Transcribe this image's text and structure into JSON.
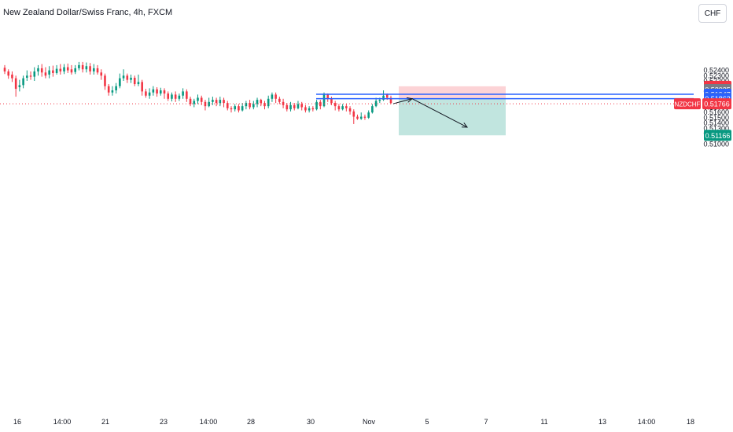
{
  "header": {
    "title": "New Zealand Dollar/Swiss Franc, 4h, FXCM",
    "currency_button": "CHF"
  },
  "chart_data": {
    "type": "candlestick",
    "symbol": "NZDCHF",
    "interval": "4h",
    "source": "FXCM",
    "y_ticks": [
      "0.52400",
      "0.52300",
      "0.52200",
      "0.52000",
      "0.51800",
      "0.51700",
      "0.51600",
      "0.51500",
      "0.51400",
      "0.51300",
      "0.51200",
      "0.51100",
      "0.51000"
    ],
    "x_ticks": [
      "16",
      "14:00",
      "21",
      "23",
      "14:00",
      "28",
      "30",
      "Nov",
      "5",
      "7",
      "11",
      "13",
      "14:00",
      "18"
    ],
    "price_labels": [
      {
        "text": "0.52098",
        "role": "stop-loss",
        "color": "#f23645"
      },
      {
        "text": "0.52035",
        "role": "level",
        "color": "#787b86"
      },
      {
        "text": "0.51947",
        "role": "resistance-line",
        "color": "#2962ff"
      },
      {
        "text": "0.51868",
        "role": "level",
        "color": "#787b86"
      },
      {
        "text": "0.51862",
        "role": "entry-line",
        "color": "#2962ff"
      },
      {
        "text": "0.51166",
        "role": "take-profit",
        "color": "#089981"
      }
    ],
    "last_price": {
      "symbol": "NZDCHF",
      "value": "0.51766",
      "color": "#f23645"
    },
    "horizontal_lines": [
      0.51947,
      0.51862
    ],
    "position": {
      "side": "short",
      "entry": 0.51862,
      "stop": 0.52098,
      "target": 0.51166
    },
    "candles": [
      [
        0.5245,
        0.5238,
        0.525,
        0.5233
      ],
      [
        0.5238,
        0.523,
        0.5242,
        0.5224
      ],
      [
        0.5232,
        0.5225,
        0.5238,
        0.5218
      ],
      [
        0.5225,
        0.5205,
        0.523,
        0.519
      ],
      [
        0.5208,
        0.5212,
        0.5222,
        0.52
      ],
      [
        0.5212,
        0.5225,
        0.523,
        0.5206
      ],
      [
        0.5226,
        0.523,
        0.524,
        0.522
      ],
      [
        0.523,
        0.5228,
        0.5238,
        0.5222
      ],
      [
        0.5228,
        0.5238,
        0.5246,
        0.522
      ],
      [
        0.5238,
        0.5244,
        0.525,
        0.523
      ],
      [
        0.5244,
        0.5236,
        0.5252,
        0.5228
      ],
      [
        0.5236,
        0.523,
        0.5246,
        0.5225
      ],
      [
        0.5232,
        0.524,
        0.5248,
        0.5225
      ],
      [
        0.524,
        0.5235,
        0.5249,
        0.5228
      ],
      [
        0.5235,
        0.5243,
        0.525,
        0.5232
      ],
      [
        0.5243,
        0.5238,
        0.5252,
        0.5232
      ],
      [
        0.5238,
        0.5246,
        0.5252,
        0.5233
      ],
      [
        0.5246,
        0.524,
        0.5253,
        0.5235
      ],
      [
        0.5242,
        0.5236,
        0.525,
        0.5232
      ],
      [
        0.5237,
        0.5244,
        0.525,
        0.5233
      ],
      [
        0.5244,
        0.525,
        0.5256,
        0.524
      ],
      [
        0.525,
        0.5242,
        0.5256,
        0.5236
      ],
      [
        0.5242,
        0.5248,
        0.5255,
        0.5236
      ],
      [
        0.5248,
        0.5238,
        0.5254,
        0.5232
      ],
      [
        0.5238,
        0.5244,
        0.5252,
        0.5232
      ],
      [
        0.5244,
        0.5236,
        0.525,
        0.5232
      ],
      [
        0.5236,
        0.523,
        0.5242,
        0.5222
      ],
      [
        0.523,
        0.521,
        0.5234,
        0.5203
      ],
      [
        0.521,
        0.5198,
        0.5214,
        0.5192
      ],
      [
        0.5198,
        0.5202,
        0.521,
        0.5192
      ],
      [
        0.5202,
        0.521,
        0.5216,
        0.5196
      ],
      [
        0.521,
        0.5225,
        0.5234,
        0.5206
      ],
      [
        0.5225,
        0.523,
        0.5242,
        0.522
      ],
      [
        0.523,
        0.5222,
        0.5234,
        0.5216
      ],
      [
        0.5222,
        0.5226,
        0.5232,
        0.5216
      ],
      [
        0.5226,
        0.5214,
        0.523,
        0.521
      ],
      [
        0.5214,
        0.5218,
        0.5232,
        0.521
      ],
      [
        0.5218,
        0.52,
        0.5222,
        0.5192
      ],
      [
        0.52,
        0.5192,
        0.5205,
        0.5188
      ],
      [
        0.5192,
        0.5198,
        0.5206,
        0.5186
      ],
      [
        0.5198,
        0.5204,
        0.521,
        0.5192
      ],
      [
        0.5204,
        0.5196,
        0.5208,
        0.519
      ],
      [
        0.5196,
        0.5202,
        0.5207,
        0.5192
      ],
      [
        0.5202,
        0.5196,
        0.5206,
        0.5186
      ],
      [
        0.5196,
        0.5186,
        0.52,
        0.5182
      ],
      [
        0.5186,
        0.5194,
        0.5198,
        0.5181
      ],
      [
        0.5194,
        0.5186,
        0.52,
        0.518
      ],
      [
        0.5186,
        0.5192,
        0.5196,
        0.5182
      ],
      [
        0.5192,
        0.52,
        0.5206,
        0.5186
      ],
      [
        0.52,
        0.5186,
        0.5204,
        0.518
      ],
      [
        0.5186,
        0.5176,
        0.519,
        0.5172
      ],
      [
        0.5176,
        0.5182,
        0.5186,
        0.517
      ],
      [
        0.5182,
        0.5188,
        0.5194,
        0.5176
      ],
      [
        0.5188,
        0.518,
        0.5192,
        0.5174
      ],
      [
        0.518,
        0.5172,
        0.5184,
        0.5164
      ],
      [
        0.5172,
        0.518,
        0.5188,
        0.517
      ],
      [
        0.518,
        0.5184,
        0.519,
        0.5174
      ],
      [
        0.5184,
        0.5178,
        0.5188,
        0.5172
      ],
      [
        0.5178,
        0.5184,
        0.519,
        0.5172
      ],
      [
        0.5184,
        0.5178,
        0.5188,
        0.517
      ],
      [
        0.5178,
        0.5168,
        0.5182,
        0.5164
      ],
      [
        0.5168,
        0.5166,
        0.5172,
        0.516
      ],
      [
        0.5166,
        0.5172,
        0.5176,
        0.5162
      ],
      [
        0.5172,
        0.5164,
        0.5176,
        0.516
      ],
      [
        0.5164,
        0.5172,
        0.5178,
        0.5162
      ],
      [
        0.5172,
        0.5178,
        0.5182,
        0.5166
      ],
      [
        0.5178,
        0.517,
        0.5184,
        0.5166
      ],
      [
        0.517,
        0.5176,
        0.5182,
        0.5166
      ],
      [
        0.5176,
        0.5184,
        0.5188,
        0.517
      ],
      [
        0.5184,
        0.5178,
        0.5186,
        0.5172
      ],
      [
        0.5178,
        0.5172,
        0.5182,
        0.5166
      ],
      [
        0.5172,
        0.5186,
        0.5192,
        0.5168
      ],
      [
        0.5186,
        0.5194,
        0.5198,
        0.518
      ],
      [
        0.5194,
        0.5186,
        0.5198,
        0.5178
      ],
      [
        0.5186,
        0.518,
        0.519,
        0.5176
      ],
      [
        0.518,
        0.5174,
        0.5186,
        0.5168
      ],
      [
        0.5174,
        0.5166,
        0.5178,
        0.5162
      ],
      [
        0.5166,
        0.5174,
        0.518,
        0.5162
      ],
      [
        0.5174,
        0.5168,
        0.5178,
        0.5164
      ],
      [
        0.5168,
        0.5176,
        0.5182,
        0.5166
      ],
      [
        0.5176,
        0.517,
        0.518,
        0.5164
      ],
      [
        0.517,
        0.5164,
        0.5174,
        0.516
      ],
      [
        0.5164,
        0.5168,
        0.5172,
        0.516
      ],
      [
        0.5168,
        0.5166,
        0.5172,
        0.5162
      ],
      [
        0.5166,
        0.518,
        0.5184,
        0.5164
      ],
      [
        0.518,
        0.5172,
        0.5184,
        0.5166
      ],
      [
        0.5172,
        0.5194,
        0.5198,
        0.517
      ],
      [
        0.5194,
        0.5186,
        0.5196,
        0.518
      ],
      [
        0.5186,
        0.5178,
        0.519,
        0.5174
      ],
      [
        0.5178,
        0.5172,
        0.5182,
        0.5164
      ],
      [
        0.5172,
        0.5166,
        0.5176,
        0.5162
      ],
      [
        0.5166,
        0.5172,
        0.5176,
        0.5164
      ],
      [
        0.5172,
        0.5168,
        0.5176,
        0.5162
      ],
      [
        0.5168,
        0.5162,
        0.5172,
        0.5156
      ],
      [
        0.5162,
        0.5152,
        0.5166,
        0.5138
      ],
      [
        0.5152,
        0.5148,
        0.5156,
        0.5146
      ],
      [
        0.5148,
        0.5152,
        0.516,
        0.5146
      ],
      [
        0.5152,
        0.515,
        0.5156,
        0.5146
      ],
      [
        0.515,
        0.516,
        0.5164,
        0.5148
      ],
      [
        0.516,
        0.5172,
        0.5176,
        0.5158
      ],
      [
        0.5172,
        0.5182,
        0.5188,
        0.517
      ],
      [
        0.5182,
        0.5184,
        0.5188,
        0.5178
      ],
      [
        0.5184,
        0.5192,
        0.5202,
        0.5182
      ],
      [
        0.5194,
        0.5188,
        0.5196,
        0.5184
      ],
      [
        0.5188,
        0.5178,
        0.5192,
        0.5176
      ]
    ]
  }
}
